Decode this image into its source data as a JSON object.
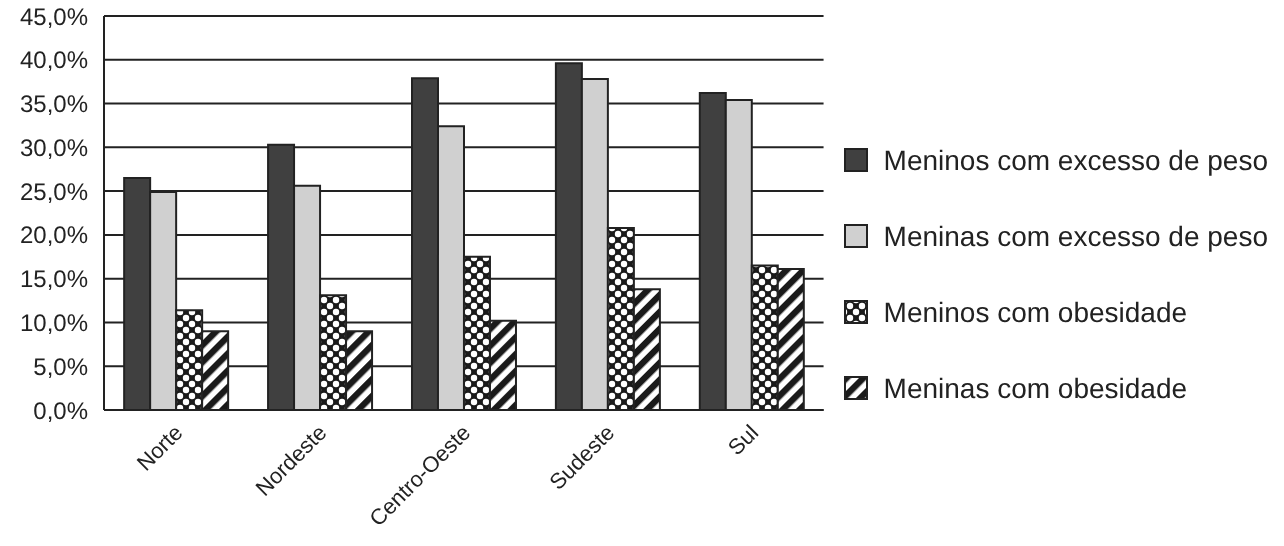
{
  "chart_data": {
    "type": "bar",
    "categories": [
      "Norte",
      "Nordeste",
      "Centro-Oeste",
      "Sudeste",
      "Sul"
    ],
    "series": [
      {
        "name": "Meninos com excesso de peso",
        "color": "#404040",
        "values": [
          26.5,
          30.3,
          37.9,
          39.6,
          36.2
        ]
      },
      {
        "name": "Meninas com excesso de peso",
        "color": "#d0d0d0",
        "values": [
          24.9,
          25.6,
          32.4,
          37.8,
          35.4
        ]
      },
      {
        "name": "Meninos com obesidade",
        "color": "#1a1a1a",
        "values": [
          11.4,
          13.1,
          17.5,
          20.8,
          16.5
        ]
      },
      {
        "name": "Meninas com obesidade",
        "color": "#1a1a1a",
        "values": [
          9.0,
          9.0,
          10.2,
          13.8,
          16.1
        ]
      }
    ],
    "ylim": [
      0,
      45
    ],
    "yticks": [
      {
        "value": 0,
        "label": "0,0%"
      },
      {
        "value": 5,
        "label": "5,0%"
      },
      {
        "value": 10,
        "label": "10,0%"
      },
      {
        "value": 15,
        "label": "15,0%"
      },
      {
        "value": 20,
        "label": "20,0%"
      },
      {
        "value": 25,
        "label": "25,0%"
      },
      {
        "value": 30,
        "label": "30,0%"
      },
      {
        "value": 35,
        "label": "35,0%"
      },
      {
        "value": 40,
        "label": "40,0%"
      },
      {
        "value": 45,
        "label": "45,0%"
      }
    ],
    "grid": "y",
    "legend": "right"
  }
}
